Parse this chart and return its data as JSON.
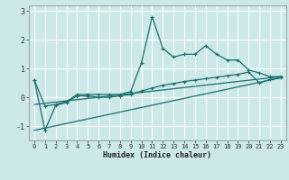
{
  "title": "",
  "xlabel": "Humidex (Indice chaleur)",
  "bg_color": "#cce8e8",
  "grid_color": "#ffffff",
  "line_color": "#1a6e6e",
  "xlim": [
    -0.5,
    23.5
  ],
  "ylim": [
    -1.5,
    3.2
  ],
  "yticks": [
    -1,
    0,
    1,
    2,
    3
  ],
  "xticks": [
    0,
    1,
    2,
    3,
    4,
    5,
    6,
    7,
    8,
    9,
    10,
    11,
    12,
    13,
    14,
    15,
    16,
    17,
    18,
    19,
    20,
    21,
    22,
    23
  ],
  "series1_x": [
    0,
    1,
    2,
    3,
    4,
    5,
    6,
    7,
    8,
    9,
    10,
    11,
    12,
    13,
    14,
    15,
    16,
    17,
    18,
    19,
    20,
    21,
    22,
    23
  ],
  "series1_y": [
    0.6,
    -0.3,
    -0.25,
    -0.15,
    0.1,
    0.1,
    0.1,
    0.1,
    0.1,
    0.2,
    1.2,
    2.8,
    1.7,
    1.4,
    1.5,
    1.5,
    1.8,
    1.5,
    1.3,
    1.3,
    0.95,
    0.85,
    0.72,
    0.72
  ],
  "series2_x": [
    0,
    1,
    2,
    3,
    4,
    5,
    6,
    7,
    8,
    9,
    10,
    11,
    12,
    13,
    14,
    15,
    16,
    17,
    18,
    19,
    20,
    21,
    22,
    23
  ],
  "series2_y": [
    0.6,
    -1.15,
    -0.28,
    -0.18,
    0.05,
    0.05,
    0.0,
    0.0,
    0.05,
    0.1,
    0.22,
    0.32,
    0.42,
    0.48,
    0.55,
    0.6,
    0.65,
    0.7,
    0.75,
    0.8,
    0.88,
    0.5,
    0.62,
    0.68
  ],
  "series3_x": [
    0,
    23
  ],
  "series3_y": [
    -0.25,
    0.72
  ],
  "series4_x": [
    0,
    23
  ],
  "series4_y": [
    -1.15,
    0.68
  ]
}
